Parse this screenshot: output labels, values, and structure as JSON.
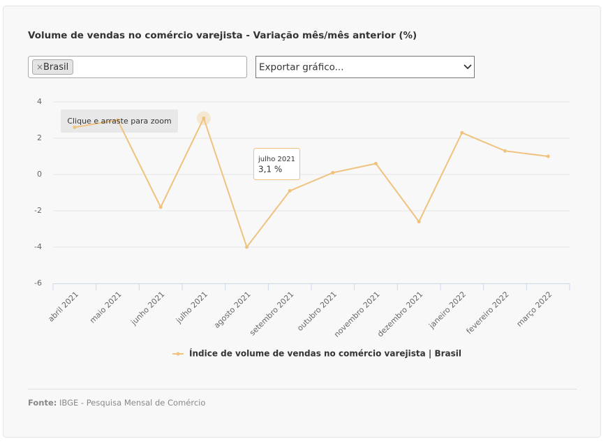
{
  "chart_data": {
    "type": "line",
    "title": "Volume de vendas no comércio varejista - Variação mês/mês anterior (%)",
    "categories": [
      "abril 2021",
      "maio 2021",
      "junho 2021",
      "julho 2021",
      "agosto 2021",
      "setembro 2021",
      "outubro 2021",
      "novembro 2021",
      "dezembro 2021",
      "janeiro 2022",
      "fevereiro 2022",
      "março 2022"
    ],
    "series": [
      {
        "name": "Índice de volume de vendas no comércio varejista | Brasil",
        "color": "#efc27e",
        "values": [
          2.6,
          3.0,
          -1.8,
          3.1,
          -4.0,
          -0.9,
          0.1,
          0.6,
          -2.6,
          2.3,
          1.3,
          1.0
        ]
      }
    ],
    "ylim": [
      -6,
      4
    ],
    "yticks": [
      -6,
      -4,
      -2,
      0,
      2,
      4
    ],
    "grid": true,
    "tooltip": {
      "title": "julho 2021",
      "text": "3,1 %"
    }
  },
  "ui": {
    "filter_remove": "×",
    "filter_tag": "Brasil",
    "export": "Exportar gráfico...",
    "zoom_hint": "Clique e arraste para zoom",
    "source_label": "Fonte:",
    "source_text": "IBGE - Pesquisa Mensal de Comércio"
  }
}
